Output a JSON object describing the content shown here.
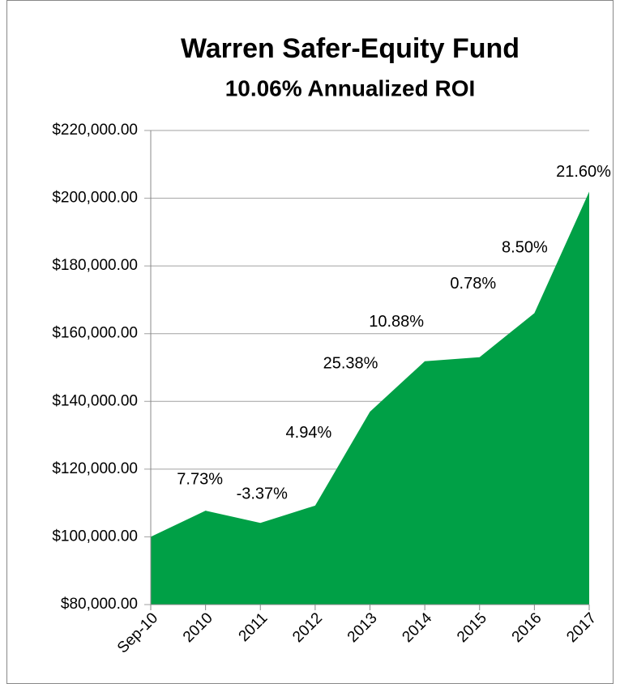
{
  "chart_data": {
    "type": "area",
    "title": "Warren Safer-Equity Fund",
    "subtitle": "10.06% Annualized ROI",
    "categories": [
      "Sep-10",
      "2010",
      "2011",
      "2012",
      "2013",
      "2014",
      "2015",
      "2016",
      "2017"
    ],
    "values": [
      100000,
      107730,
      104100,
      109240,
      136960,
      151860,
      153050,
      166060,
      201930
    ],
    "data_labels": [
      null,
      "7.73%",
      "-3.37%",
      "4.94%",
      "25.38%",
      "10.88%",
      "0.78%",
      "8.50%",
      "21.60%"
    ],
    "color": "#00a046",
    "subtitle_color": "#1e9a3c",
    "ylim": [
      80000,
      220000
    ],
    "yticks": [
      {
        "value": 80000,
        "label": "$80,000.00"
      },
      {
        "value": 100000,
        "label": "$100,000.00"
      },
      {
        "value": 120000,
        "label": "$120,000.00"
      },
      {
        "value": 140000,
        "label": "$140,000.00"
      },
      {
        "value": 160000,
        "label": "$160,000.00"
      },
      {
        "value": 180000,
        "label": "$180,000.00"
      },
      {
        "value": 200000,
        "label": "$200,000.00"
      },
      {
        "value": 220000,
        "label": "$220,000.00"
      }
    ],
    "grid": true
  }
}
